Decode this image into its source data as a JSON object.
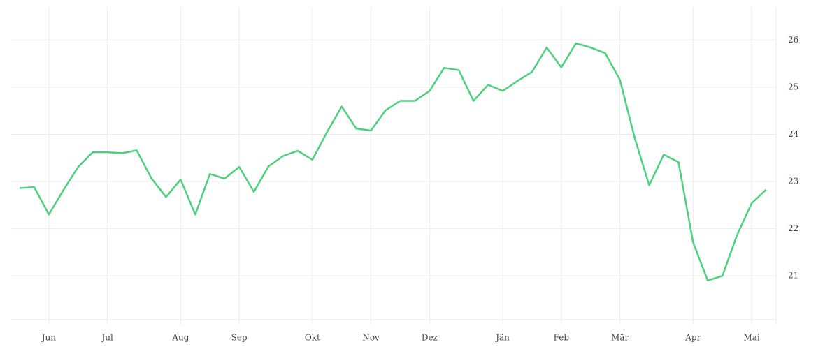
{
  "chart_data": {
    "type": "line",
    "categories": [
      null,
      null,
      "Jun",
      null,
      null,
      null,
      "Jul",
      null,
      null,
      null,
      null,
      "Aug",
      null,
      null,
      null,
      "Sep",
      null,
      null,
      null,
      null,
      "Okt",
      null,
      null,
      null,
      "Nov",
      null,
      null,
      null,
      "Dez",
      null,
      null,
      null,
      null,
      "Jän",
      null,
      null,
      null,
      "Feb",
      null,
      null,
      null,
      "Mär",
      null,
      null,
      null,
      null,
      "Apr",
      null,
      null,
      null,
      "Mai",
      null
    ],
    "series": [
      {
        "color": "#4cd07d",
        "values": [
          22.86,
          22.88,
          22.3,
          22.82,
          23.31,
          23.62,
          23.62,
          23.6,
          23.66,
          23.07,
          22.67,
          23.04,
          22.3,
          23.16,
          23.06,
          23.31,
          22.78,
          23.32,
          23.54,
          23.65,
          23.46,
          24.05,
          24.59,
          24.12,
          24.08,
          24.51,
          24.71,
          24.71,
          24.92,
          25.41,
          25.36,
          24.71,
          25.05,
          24.92,
          25.13,
          25.32,
          25.84,
          25.42,
          25.93,
          25.84,
          25.72,
          25.16,
          23.94,
          22.92,
          23.57,
          23.41,
          21.71,
          20.9,
          21.0,
          21.86,
          22.54,
          22.83
        ]
      }
    ],
    "ylim": [
      20.07,
      26.7
    ],
    "yticks": [
      21,
      22,
      23,
      24,
      25,
      26
    ],
    "grid": true
  }
}
